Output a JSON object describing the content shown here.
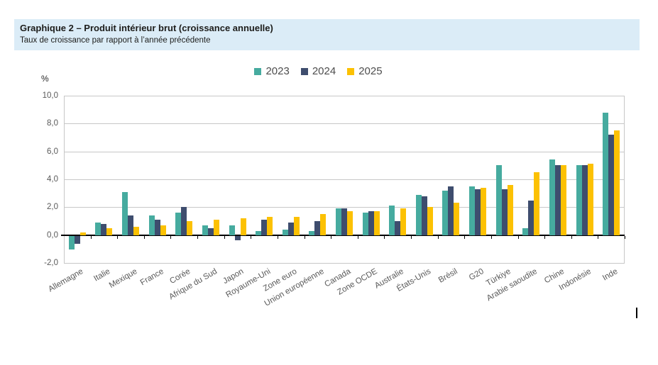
{
  "header": {
    "title": "Graphique 2 – Produit intérieur brut (croissance annuelle)",
    "subtitle": "Taux de croissance par rapport à l’année précédente"
  },
  "axis": {
    "unit_label": "%",
    "y_tick_labels": [
      "10,0",
      "8,0",
      "6,0",
      "4,0",
      "2,0",
      "0,0",
      "-2,0"
    ]
  },
  "colors": {
    "header_band": "#dbecf7",
    "gridline": "#c7c7c7",
    "zero_line": "#000000",
    "axis_text": "#595959",
    "series_2023": "#46ab9f",
    "series_2024": "#3e4d6e",
    "series_2025": "#fcc103"
  },
  "chart_data": {
    "type": "bar",
    "title": "Graphique 2 – Produit intérieur brut (croissance annuelle)",
    "subtitle": "Taux de croissance par rapport à l’année précédente",
    "ylabel": "%",
    "ylim": [
      -2,
      10
    ],
    "y_tick_step": 2,
    "grid": true,
    "legend_position": "top",
    "categories": [
      "Allemagne",
      "Italie",
      "Mexique",
      "France",
      "Corée",
      "Afrique du Sud",
      "Japon",
      "Royaume-Uni",
      "Zone euro",
      "Union européenne",
      "Canada",
      "Zone OCDE",
      "Australie",
      "États-Unis",
      "Brésil",
      "G20",
      "Türkiye",
      "Arabie saoudite",
      "Chine",
      "Indonésie",
      "Inde"
    ],
    "series": [
      {
        "name": "2023",
        "color": "#46ab9f",
        "values": [
          -1.0,
          0.9,
          3.1,
          1.4,
          1.6,
          0.7,
          0.7,
          0.3,
          0.4,
          0.3,
          1.9,
          1.6,
          2.1,
          2.9,
          3.2,
          3.5,
          5.0,
          0.5,
          5.4,
          5.0,
          8.8
        ]
      },
      {
        "name": "2024",
        "color": "#3e4d6e",
        "values": [
          -0.6,
          0.8,
          1.4,
          1.1,
          2.0,
          0.5,
          -0.3,
          1.1,
          0.9,
          1.0,
          1.9,
          1.7,
          1.0,
          2.8,
          3.5,
          3.3,
          3.3,
          2.5,
          5.0,
          5.0,
          7.2
        ]
      },
      {
        "name": "2025",
        "color": "#fcc103",
        "values": [
          0.2,
          0.5,
          0.6,
          0.7,
          1.0,
          1.1,
          1.2,
          1.3,
          1.3,
          1.5,
          1.7,
          1.7,
          1.9,
          2.0,
          2.3,
          3.4,
          3.6,
          4.5,
          5.0,
          5.1,
          7.5
        ]
      }
    ]
  }
}
